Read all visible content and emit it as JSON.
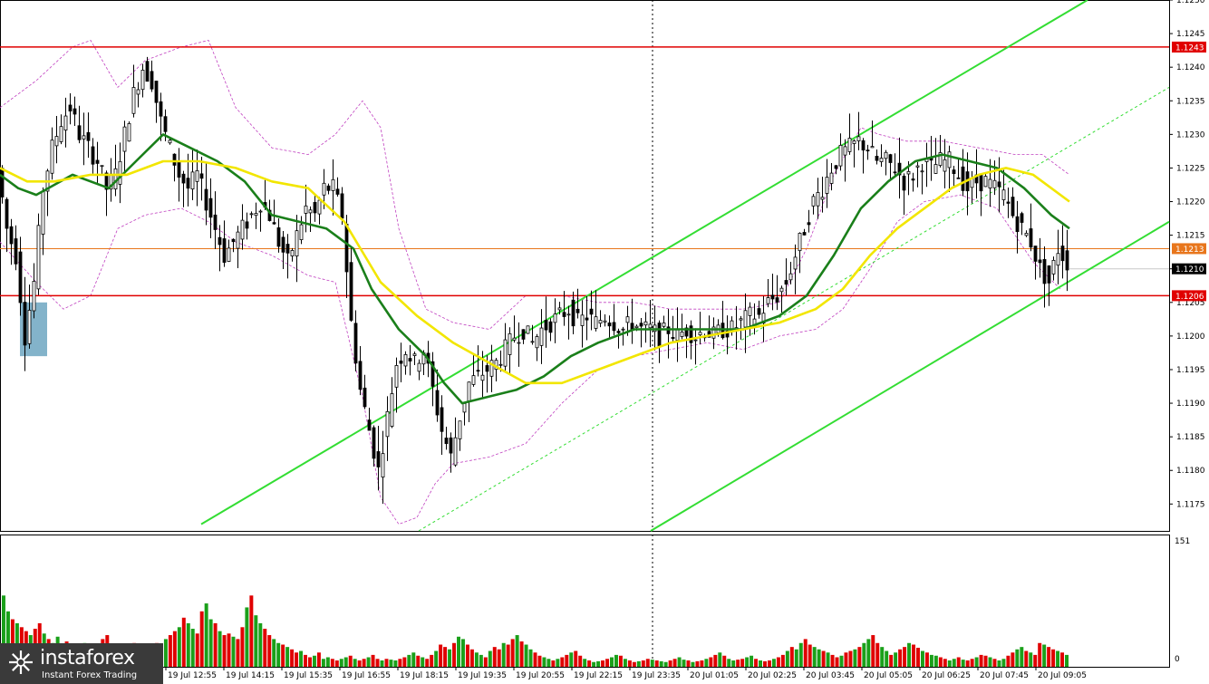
{
  "chart_data": {
    "type": "candlestick",
    "symbol_hint": "",
    "y_axis": {
      "ticks": [
        "1.1250",
        "1.1245",
        "1.1240",
        "1.1235",
        "1.1230",
        "1.1225",
        "1.1220",
        "1.1215",
        "1.1210",
        "1.1205",
        "1.1200",
        "1.1195",
        "1.1190",
        "1.1185",
        "1.1180",
        "1.1175"
      ],
      "range": [
        1.1171,
        1.125
      ],
      "position": "right"
    },
    "x_axis": {
      "labels": [
        "19 Jul 12:55",
        "19 Jul 14:15",
        "19 Jul 15:35",
        "19 Jul 16:55",
        "19 Jul 18:15",
        "19 Jul 19:35",
        "19 Jul 20:55",
        "19 Jul 22:15",
        "19 Jul 23:35",
        "20 Jul 01:05",
        "20 Jul 02:25",
        "20 Jul 03:45",
        "20 Jul 05:05",
        "20 Jul 06:25",
        "20 Jul 07:45",
        "20 Jul 09:05"
      ]
    },
    "horizontal_levels": [
      {
        "value": 1.1243,
        "label": "1.1243",
        "color": "#e00000"
      },
      {
        "value": 1.1206,
        "label": "1.1206",
        "color": "#e00000"
      },
      {
        "value": 1.1213,
        "label": "1.1213",
        "color": "#e8761c"
      }
    ],
    "current_price": {
      "value": 1.121,
      "label": "1.1210"
    },
    "moving_averages": [
      {
        "color": "#1a7f1a",
        "points": [
          [
            0,
            1.1224
          ],
          [
            20,
            1.1222
          ],
          [
            40,
            1.1221
          ],
          [
            80,
            1.1224
          ],
          [
            120,
            1.1222
          ],
          [
            150,
            1.1226
          ],
          [
            180,
            1.123
          ],
          [
            210,
            1.1228
          ],
          [
            240,
            1.1226
          ],
          [
            270,
            1.1223
          ],
          [
            300,
            1.1218
          ],
          [
            330,
            1.1217
          ],
          [
            360,
            1.1216
          ],
          [
            390,
            1.1213
          ],
          [
            410,
            1.1207
          ],
          [
            440,
            1.1201
          ],
          [
            470,
            1.1197
          ],
          [
            490,
            1.1193
          ],
          [
            510,
            1.119
          ],
          [
            540,
            1.1191
          ],
          [
            570,
            1.1192
          ],
          [
            600,
            1.1194
          ],
          [
            630,
            1.1197
          ],
          [
            660,
            1.1199
          ],
          [
            700,
            1.1201
          ],
          [
            740,
            1.1201
          ],
          [
            780,
            1.1201
          ],
          [
            820,
            1.1201
          ],
          [
            860,
            1.1203
          ],
          [
            890,
            1.1206
          ],
          [
            920,
            1.1212
          ],
          [
            950,
            1.1219
          ],
          [
            980,
            1.1223
          ],
          [
            1010,
            1.1226
          ],
          [
            1040,
            1.1227
          ],
          [
            1070,
            1.1226
          ],
          [
            1100,
            1.1225
          ],
          [
            1130,
            1.1222
          ],
          [
            1160,
            1.1218
          ],
          [
            1180,
            1.1216
          ]
        ]
      },
      {
        "color": "#f2e600",
        "points": [
          [
            0,
            1.1225
          ],
          [
            30,
            1.1223
          ],
          [
            60,
            1.1223
          ],
          [
            100,
            1.1224
          ],
          [
            140,
            1.1224
          ],
          [
            180,
            1.1226
          ],
          [
            220,
            1.1226
          ],
          [
            260,
            1.1225
          ],
          [
            300,
            1.1223
          ],
          [
            340,
            1.1222
          ],
          [
            380,
            1.1217
          ],
          [
            420,
            1.1208
          ],
          [
            460,
            1.1203
          ],
          [
            500,
            1.1199
          ],
          [
            540,
            1.1196
          ],
          [
            580,
            1.1193
          ],
          [
            620,
            1.1193
          ],
          [
            660,
            1.1195
          ],
          [
            700,
            1.1197
          ],
          [
            740,
            1.1199
          ],
          [
            780,
            1.12
          ],
          [
            820,
            1.1201
          ],
          [
            860,
            1.1202
          ],
          [
            900,
            1.1204
          ],
          [
            930,
            1.1207
          ],
          [
            960,
            1.1212
          ],
          [
            990,
            1.1216
          ],
          [
            1020,
            1.1219
          ],
          [
            1050,
            1.1222
          ],
          [
            1080,
            1.1224
          ],
          [
            1110,
            1.1225
          ],
          [
            1140,
            1.1224
          ],
          [
            1160,
            1.1222
          ],
          [
            1180,
            1.122
          ]
        ]
      }
    ],
    "channel_lines": [
      {
        "style": "solid",
        "color": "#33dd33",
        "from": [
          222,
          1.1172
        ],
        "to": [
          1200,
          1.125
        ]
      },
      {
        "style": "solid",
        "color": "#33dd33",
        "from": [
          718,
          1.1171
        ],
        "to": [
          1290,
          1.1217
        ]
      },
      {
        "style": "dashed",
        "color": "#33dd33",
        "from": [
          462,
          1.1171
        ],
        "to": [
          1290,
          1.1237
        ]
      }
    ],
    "envelope": {
      "color": "#c040c0",
      "upper": [
        [
          0,
          1.1234
        ],
        [
          40,
          1.1238
        ],
        [
          80,
          1.1243
        ],
        [
          100,
          1.1244
        ],
        [
          130,
          1.1237
        ],
        [
          160,
          1.1241
        ],
        [
          200,
          1.1243
        ],
        [
          230,
          1.1244
        ],
        [
          260,
          1.1234
        ],
        [
          300,
          1.1228
        ],
        [
          340,
          1.1227
        ],
        [
          370,
          1.123
        ],
        [
          400,
          1.1235
        ],
        [
          420,
          1.1231
        ],
        [
          440,
          1.1216
        ],
        [
          470,
          1.1204
        ],
        [
          500,
          1.1202
        ],
        [
          540,
          1.1201
        ],
        [
          580,
          1.1206
        ],
        [
          620,
          1.1206
        ],
        [
          660,
          1.1205
        ],
        [
          700,
          1.1205
        ],
        [
          740,
          1.1204
        ],
        [
          780,
          1.1204
        ],
        [
          820,
          1.1204
        ],
        [
          860,
          1.1205
        ],
        [
          890,
          1.1213
        ],
        [
          920,
          1.1224
        ],
        [
          950,
          1.1231
        ],
        [
          970,
          1.123
        ],
        [
          1000,
          1.1229
        ],
        [
          1040,
          1.1229
        ],
        [
          1080,
          1.1228
        ],
        [
          1120,
          1.1227
        ],
        [
          1150,
          1.1227
        ],
        [
          1180,
          1.1224
        ]
      ],
      "lower": [
        [
          0,
          1.1214
        ],
        [
          40,
          1.1208
        ],
        [
          70,
          1.1204
        ],
        [
          100,
          1.1206
        ],
        [
          130,
          1.1216
        ],
        [
          160,
          1.1218
        ],
        [
          200,
          1.1219
        ],
        [
          230,
          1.1217
        ],
        [
          260,
          1.1214
        ],
        [
          300,
          1.1212
        ],
        [
          340,
          1.1209
        ],
        [
          370,
          1.1208
        ],
        [
          400,
          1.1191
        ],
        [
          420,
          1.1176
        ],
        [
          440,
          1.1172
        ],
        [
          460,
          1.1173
        ],
        [
          480,
          1.1178
        ],
        [
          500,
          1.1181
        ],
        [
          540,
          1.1182
        ],
        [
          580,
          1.1184
        ],
        [
          620,
          1.119
        ],
        [
          660,
          1.1195
        ],
        [
          700,
          1.1197
        ],
        [
          740,
          1.1198
        ],
        [
          780,
          1.1199
        ],
        [
          820,
          1.1198
        ],
        [
          860,
          1.12
        ],
        [
          900,
          1.1201
        ],
        [
          930,
          1.1204
        ],
        [
          960,
          1.121
        ],
        [
          990,
          1.1217
        ],
        [
          1020,
          1.122
        ],
        [
          1060,
          1.1221
        ],
        [
          1100,
          1.1219
        ],
        [
          1140,
          1.1211
        ],
        [
          1170,
          1.1207
        ]
      ]
    },
    "highlight_box": {
      "x1": 22,
      "x2": 52,
      "y_top": 1.1205,
      "y_bottom": 1.1197,
      "color": "#5a9ab8"
    },
    "candles_guide": [
      [
        0,
        1.1225
      ],
      [
        10,
        1.1216
      ],
      [
        20,
        1.1212
      ],
      [
        30,
        1.12
      ],
      [
        40,
        1.1208
      ],
      [
        50,
        1.1222
      ],
      [
        60,
        1.1228
      ],
      [
        70,
        1.1232
      ],
      [
        80,
        1.1234
      ],
      [
        90,
        1.123
      ],
      [
        100,
        1.1228
      ],
      [
        110,
        1.1226
      ],
      [
        120,
        1.1222
      ],
      [
        130,
        1.1224
      ],
      [
        140,
        1.123
      ],
      [
        150,
        1.1236
      ],
      [
        160,
        1.124
      ],
      [
        170,
        1.1238
      ],
      [
        180,
        1.1232
      ],
      [
        190,
        1.1228
      ],
      [
        200,
        1.1224
      ],
      [
        210,
        1.1222
      ],
      [
        220,
        1.1224
      ],
      [
        230,
        1.122
      ],
      [
        240,
        1.1216
      ],
      [
        250,
        1.1212
      ],
      [
        260,
        1.1214
      ],
      [
        270,
        1.1216
      ],
      [
        280,
        1.1218
      ],
      [
        290,
        1.122
      ],
      [
        300,
        1.1218
      ],
      [
        310,
        1.1214
      ],
      [
        320,
        1.1211
      ],
      [
        330,
        1.1215
      ],
      [
        340,
        1.1219
      ],
      [
        350,
        1.1218
      ],
      [
        360,
        1.1222
      ],
      [
        370,
        1.1222
      ],
      [
        380,
        1.1218
      ],
      [
        390,
        1.1202
      ],
      [
        400,
        1.1192
      ],
      [
        410,
        1.1186
      ],
      [
        420,
        1.118
      ],
      [
        430,
        1.1188
      ],
      [
        440,
        1.1196
      ],
      [
        450,
        1.1198
      ],
      [
        460,
        1.1196
      ],
      [
        470,
        1.1198
      ],
      [
        480,
        1.1192
      ],
      [
        490,
        1.1186
      ],
      [
        500,
        1.1182
      ],
      [
        510,
        1.1188
      ],
      [
        520,
        1.1193
      ],
      [
        530,
        1.1194
      ],
      [
        540,
        1.1195
      ],
      [
        550,
        1.1196
      ],
      [
        560,
        1.1198
      ],
      [
        570,
        1.12
      ],
      [
        580,
        1.1201
      ],
      [
        590,
        1.1199
      ],
      [
        600,
        1.1201
      ],
      [
        610,
        1.1202
      ],
      [
        620,
        1.1203
      ],
      [
        630,
        1.1204
      ],
      [
        640,
        1.1202
      ],
      [
        650,
        1.1203
      ],
      [
        660,
        1.1202
      ],
      [
        670,
        1.1203
      ],
      [
        680,
        1.1202
      ],
      [
        690,
        1.1201
      ],
      [
        700,
        1.1202
      ],
      [
        710,
        1.1201
      ],
      [
        720,
        1.1201
      ],
      [
        730,
        1.12
      ],
      [
        740,
        1.1201
      ],
      [
        750,
        1.12
      ],
      [
        760,
        1.1201
      ],
      [
        770,
        1.12
      ],
      [
        780,
        1.1201
      ],
      [
        790,
        1.12
      ],
      [
        800,
        1.1201
      ],
      [
        810,
        1.1201
      ],
      [
        820,
        1.1202
      ],
      [
        830,
        1.1203
      ],
      [
        840,
        1.1203
      ],
      [
        850,
        1.1205
      ],
      [
        860,
        1.1206
      ],
      [
        870,
        1.1208
      ],
      [
        880,
        1.1212
      ],
      [
        890,
        1.1216
      ],
      [
        900,
        1.122
      ],
      [
        910,
        1.1222
      ],
      [
        920,
        1.1225
      ],
      [
        930,
        1.1227
      ],
      [
        940,
        1.1228
      ],
      [
        950,
        1.1229
      ],
      [
        960,
        1.1228
      ],
      [
        970,
        1.1226
      ],
      [
        980,
        1.1226
      ],
      [
        990,
        1.1225
      ],
      [
        1000,
        1.1223
      ],
      [
        1010,
        1.1224
      ],
      [
        1020,
        1.1226
      ],
      [
        1030,
        1.1225
      ],
      [
        1040,
        1.1226
      ],
      [
        1050,
        1.1226
      ],
      [
        1060,
        1.1224
      ],
      [
        1070,
        1.1222
      ],
      [
        1080,
        1.1223
      ],
      [
        1090,
        1.1223
      ],
      [
        1100,
        1.1222
      ],
      [
        1110,
        1.1221
      ],
      [
        1120,
        1.1218
      ],
      [
        1130,
        1.1216
      ],
      [
        1140,
        1.1214
      ],
      [
        1150,
        1.121
      ],
      [
        1160,
        1.1208
      ],
      [
        1170,
        1.1213
      ],
      [
        1180,
        1.1211
      ]
    ],
    "volume": {
      "axis_max_label": "151",
      "axis_min_label": "0",
      "max": 151,
      "bars": [
        90,
        70,
        60,
        55,
        50,
        45,
        40,
        48,
        55,
        42,
        35,
        30,
        38,
        25,
        32,
        28,
        22,
        18,
        30,
        25,
        22,
        20,
        35,
        40,
        28,
        22,
        20,
        18,
        25,
        30,
        22,
        18,
        20,
        28,
        30,
        25,
        35,
        40,
        45,
        50,
        62,
        55,
        48,
        42,
        70,
        80,
        60,
        55,
        45,
        40,
        42,
        38,
        35,
        50,
        75,
        90,
        65,
        55,
        48,
        40,
        35,
        30,
        28,
        25,
        22,
        18,
        20,
        15,
        12,
        14,
        18,
        10,
        12,
        10,
        8,
        10,
        12,
        14,
        10,
        8,
        10,
        12,
        15,
        10,
        8,
        10,
        9,
        8,
        10,
        12,
        15,
        18,
        14,
        12,
        10,
        15,
        20,
        28,
        25,
        22,
        30,
        38,
        35,
        28,
        22,
        18,
        15,
        12,
        20,
        25,
        22,
        30,
        28,
        35,
        40,
        32,
        28,
        22,
        18,
        14,
        12,
        10,
        8,
        10,
        12,
        15,
        18,
        20,
        14,
        10,
        8,
        6,
        7,
        8,
        10,
        12,
        15,
        14,
        10,
        8,
        6,
        7,
        8,
        10,
        9,
        8,
        7,
        6,
        8,
        10,
        12,
        9,
        8,
        6,
        7,
        8,
        10,
        12,
        15,
        18,
        14,
        10,
        8,
        9,
        10,
        12,
        14,
        10,
        8,
        7,
        8,
        10,
        12,
        15,
        20,
        25,
        22,
        30,
        35,
        28,
        25,
        22,
        20,
        18,
        15,
        12,
        14,
        18,
        20,
        22,
        25,
        30,
        35,
        40,
        30,
        25,
        20,
        15,
        18,
        22,
        25,
        30,
        28,
        24,
        20,
        18,
        15,
        14,
        12,
        10,
        8,
        10,
        12,
        9,
        8,
        10,
        12,
        15,
        14,
        12,
        10,
        8,
        10,
        14,
        18,
        22,
        25,
        20,
        18,
        15,
        30,
        28,
        25,
        22,
        20,
        18,
        15
      ]
    },
    "dashed_verticals": [
      {
        "x": 720
      }
    ]
  },
  "brand": {
    "name": "instaforex",
    "tagline": "Instant Forex Trading"
  }
}
